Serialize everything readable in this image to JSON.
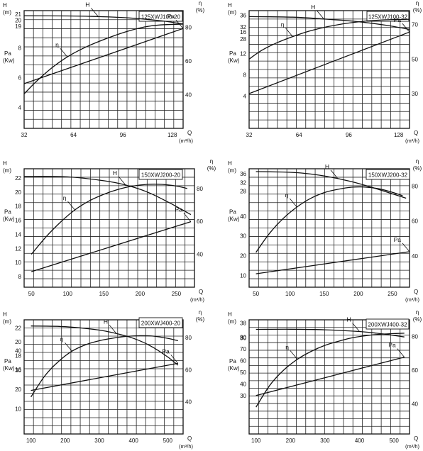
{
  "chart_data": [
    {
      "type": "line",
      "model": "125XWJ100-20",
      "xlabel": "Q",
      "xunit": "(m³/h)",
      "xlim": [
        32,
        135
      ],
      "x_ticks": [
        32,
        64,
        96,
        128
      ],
      "left_axis": {
        "h_label": "H",
        "h_unit": "(m)",
        "pa_label": "Pa",
        "pa_unit": "(Kw)",
        "h_ticks": [
          19,
          20,
          21
        ],
        "pa_ticks": [
          4,
          6,
          8
        ]
      },
      "right_axis": {
        "label": "η",
        "unit": "(%)",
        "ticks": [
          40,
          60,
          80
        ]
      },
      "series": [
        {
          "name": "H",
          "x": [
            32,
            60,
            80,
            100,
            120,
            135
          ],
          "y": [
            20.75,
            20.72,
            20.62,
            20.4,
            19.95,
            19.4
          ]
        },
        {
          "name": "η",
          "x": [
            32,
            40,
            50,
            60,
            70,
            80,
            90,
            100,
            110,
            120,
            135
          ],
          "y": [
            40.5,
            48,
            56,
            62.5,
            67.5,
            71.5,
            75,
            78,
            80.3,
            81.5,
            82
          ]
        },
        {
          "name": "Pa",
          "x": [
            32,
            135
          ],
          "y": [
            5.6,
            9.3
          ]
        }
      ]
    },
    {
      "type": "line",
      "model": "125XWJ100-32",
      "xlabel": "Q",
      "xunit": "(m³/h)",
      "xlim": [
        32,
        135
      ],
      "x_ticks": [
        32,
        64,
        96,
        128
      ],
      "left_axis": {
        "h_label": "H",
        "h_unit": "(m)",
        "pa_label": "Pa",
        "pa_unit": "(Kw)",
        "h_ticks": [
          28,
          32,
          36
        ],
        "pa_ticks": [
          4,
          8,
          12,
          16
        ]
      },
      "right_axis": {
        "label": "η",
        "unit": "(%)",
        "ticks": [
          30,
          50,
          70
        ]
      },
      "series": [
        {
          "name": "H",
          "x": [
            32,
            60,
            80,
            100,
            120,
            135
          ],
          "y": [
            35.5,
            35.3,
            34.7,
            33.9,
            32.6,
            31.2
          ]
        },
        {
          "name": "η",
          "x": [
            32,
            40,
            50,
            60,
            70,
            80,
            90,
            100,
            110,
            120,
            135
          ],
          "y": [
            50,
            55,
            59.5,
            63,
            66,
            68.3,
            70,
            71.3,
            72.2,
            72.7,
            73
          ]
        },
        {
          "name": "Pa",
          "x": [
            32,
            135
          ],
          "y": [
            4.5,
            16
          ]
        }
      ]
    },
    {
      "type": "line",
      "model": "150XWJ200-20",
      "xlabel": "Q",
      "xunit": "(m³/h)",
      "xlim": [
        40,
        275
      ],
      "x_ticks": [
        50,
        100,
        150,
        200,
        250
      ],
      "left_axis": {
        "h_label": "H",
        "h_unit": "(m)",
        "pa_label": "Pa",
        "pa_unit": "(Kw)",
        "h_ticks": [
          16,
          18,
          20,
          22
        ],
        "pa_ticks": [
          8,
          10,
          12,
          14
        ]
      },
      "right_axis": {
        "label": "η",
        "unit": "(%)",
        "ticks": [
          40,
          60,
          80
        ]
      },
      "series": [
        {
          "name": "H",
          "x": [
            40,
            100,
            150,
            180,
            210,
            240,
            270
          ],
          "y": [
            22.2,
            22.15,
            21.6,
            21.0,
            20.0,
            18.5,
            16.8
          ]
        },
        {
          "name": "η",
          "x": [
            50,
            70,
            90,
            110,
            130,
            150,
            170,
            190,
            210,
            230,
            250,
            265
          ],
          "y": [
            40,
            50.5,
            59.5,
            67,
            72.5,
            76.5,
            79.5,
            81.5,
            82.5,
            82.5,
            81.5,
            80
          ]
        },
        {
          "name": "Pa",
          "x": [
            50,
            270
          ],
          "y": [
            8.7,
            15.8
          ]
        }
      ]
    },
    {
      "type": "line",
      "model": "150XWJ200-32",
      "xlabel": "Q",
      "xunit": "(m³/h)",
      "xlim": [
        40,
        275
      ],
      "x_ticks": [
        50,
        100,
        150,
        200,
        250
      ],
      "left_axis": {
        "h_label": "H",
        "h_unit": "(m)",
        "pa_label": "Pa",
        "pa_unit": "(Kw)",
        "h_ticks": [
          28,
          32,
          36
        ],
        "pa_ticks": [
          10,
          20,
          30,
          40
        ]
      },
      "right_axis": {
        "label": "η",
        "unit": "(%)",
        "ticks": [
          40,
          60,
          80
        ]
      },
      "series": [
        {
          "name": "H",
          "x": [
            50,
            90,
            110,
            130,
            150,
            170,
            190,
            210,
            230,
            250,
            270
          ],
          "y": [
            37,
            36.8,
            36.5,
            35.9,
            35,
            33.8,
            32.4,
            30.7,
            28.8,
            26.8,
            24.8
          ]
        },
        {
          "name": "η",
          "x": [
            50,
            70,
            90,
            110,
            130,
            150,
            170,
            190,
            210,
            230,
            250,
            265
          ],
          "y": [
            42,
            53,
            61.5,
            68,
            73,
            76.3,
            78.2,
            79.4,
            79.5,
            78.5,
            76.5,
            74.5
          ]
        },
        {
          "name": "Pa",
          "x": [
            50,
            275
          ],
          "y": [
            10.8,
            22
          ]
        }
      ]
    },
    {
      "type": "line",
      "model": "200XWJ400-20",
      "xlabel": "Q",
      "xunit": "(m³/h)",
      "xlim": [
        80,
        545
      ],
      "x_ticks": [
        100,
        200,
        300,
        400,
        500
      ],
      "left_axis": {
        "h_label": "H",
        "h_unit": "(m)",
        "pa_label": "Pa",
        "pa_unit": "(Kw)",
        "h_ticks": [
          16,
          18,
          20,
          22
        ],
        "pa_ticks": [
          10,
          20,
          30,
          40
        ]
      },
      "right_axis": {
        "label": "η",
        "unit": "(%)",
        "ticks": [
          40,
          60,
          80
        ]
      },
      "series": [
        {
          "name": "H",
          "x": [
            100,
            200,
            300,
            350,
            400,
            450,
            500,
            530
          ],
          "y": [
            22.3,
            22.2,
            21.7,
            21.2,
            20.5,
            19.4,
            17.8,
            16.6
          ]
        },
        {
          "name": "η",
          "x": [
            100,
            140,
            180,
            220,
            260,
            300,
            340,
            380,
            420,
            460,
            500,
            530
          ],
          "y": [
            43,
            56,
            65,
            71.5,
            75.5,
            78,
            79.6,
            80.7,
            81.1,
            80.8,
            79.5,
            78
          ]
        },
        {
          "name": "Pa",
          "x": [
            100,
            530
          ],
          "y": [
            19.5,
            33.5
          ]
        }
      ]
    },
    {
      "type": "line",
      "model": "200XWJ400-32",
      "xlabel": "Q",
      "xunit": "(m³/h)",
      "xlim": [
        80,
        545
      ],
      "x_ticks": [
        100,
        200,
        300,
        400,
        500
      ],
      "left_axis": {
        "h_label": "H",
        "h_unit": "(m)",
        "pa_label": "Pa",
        "pa_unit": "(Kw)",
        "h_ticks": [
          30,
          38
        ],
        "pa_ticks": [
          30,
          40,
          50,
          60,
          70,
          80
        ]
      },
      "right_axis": {
        "label": "η",
        "unit": "(%)",
        "ticks": [
          40,
          60,
          80
        ]
      },
      "series": [
        {
          "name": "H",
          "x": [
            100,
            200,
            300,
            400,
            450,
            500,
            530
          ],
          "y": [
            34.5,
            34.6,
            34.3,
            33.4,
            32.5,
            31.3,
            30.5
          ]
        },
        {
          "name": "η",
          "x": [
            100,
            140,
            180,
            220,
            260,
            300,
            340,
            380,
            420,
            460,
            500,
            530
          ],
          "y": [
            38,
            51,
            60,
            66.5,
            71.2,
            74.8,
            77.3,
            79.3,
            80.6,
            81.4,
            81.8,
            82
          ]
        },
        {
          "name": "Pa",
          "x": [
            100,
            530
          ],
          "y": [
            30,
            63
          ]
        }
      ]
    }
  ]
}
